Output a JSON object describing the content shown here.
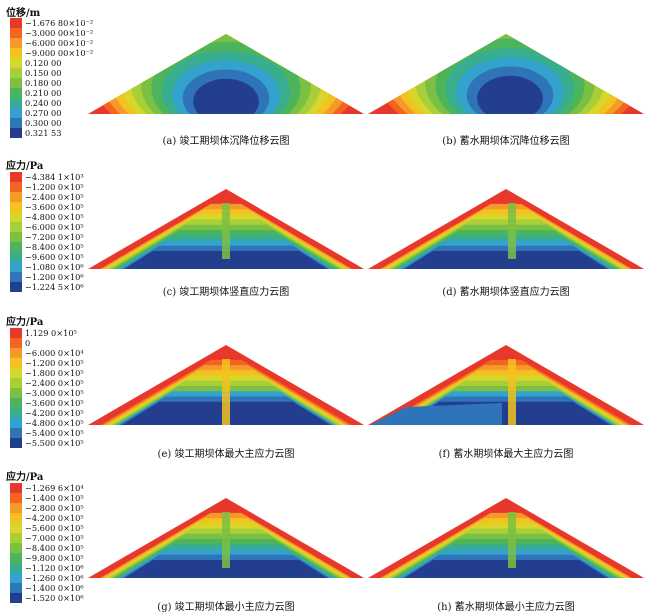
{
  "rows": [
    {
      "unit": "位移/m",
      "legend": [
        "−1.676 80×10⁻²",
        "−3.000 00×10⁻²",
        "−6.000 00×10⁻²",
        "−9.000 00×10⁻²",
        "0.120 00",
        "0.150 00",
        "0.180 00",
        "0.210 00",
        "0.240 00",
        "0.270 00",
        "0.300 00",
        "0.321 53"
      ],
      "captions": [
        "(a) 竣工期坝体沉降位移云图",
        "(b) 蓄水期坝体沉降位移云图"
      ]
    },
    {
      "unit": "应力/Pa",
      "legend": [
        "−4.384 1×10³",
        "−1.200 0×10⁵",
        "−2.400 0×10⁵",
        "−3.600 0×10⁵",
        "−4.800 0×10⁵",
        "−6.000 0×10⁵",
        "−7.200 0×10⁵",
        "−8.400 0×10⁵",
        "−9.600 0×10⁵",
        "−1.080 0×10⁶",
        "−1.200 0×10⁶",
        "−1.224 5×10⁶"
      ],
      "captions": [
        "(c) 竣工期坝体竖直应力云图",
        "(d) 蓄水期坝体竖直应力云图"
      ]
    },
    {
      "unit": "应力/Pa",
      "legend": [
        "1.129 0×10⁵",
        "0",
        "−6.000 0×10⁴",
        "−1.200 0×10⁵",
        "−1.800 0×10⁵",
        "−2.400 0×10⁵",
        "−3.000 0×10⁵",
        "−3.600 0×10⁵",
        "−4.200 0×10⁵",
        "−4.800 0×10⁵",
        "−5.400 0×10⁵",
        "−5.500 0×10⁵"
      ],
      "captions": [
        "(e) 竣工期坝体最大主应力云图",
        "(f) 蓄水期坝体最大主应力云图"
      ]
    },
    {
      "unit": "应力/Pa",
      "legend": [
        "−1.269 6×10⁴",
        "−1.400 0×10⁵",
        "−2.800 0×10⁵",
        "−4.200 0×10⁵",
        "−5.600 0×10⁵",
        "−7.000 0×10⁵",
        "−8.400 0×10⁵",
        "−9.800 0×10⁵",
        "−1.120 0×10⁶",
        "−1.260 0×10⁶",
        "−1.400 0×10⁶",
        "−1.520 0×10⁶"
      ],
      "captions": [
        "(g) 竣工期坝体最小主应力云图",
        "(h) 蓄水期坝体最小主应力云图"
      ]
    }
  ],
  "palette": [
    "#e8382b",
    "#f2641f",
    "#f4992a",
    "#f3c21f",
    "#d8d62a",
    "#a8cf3a",
    "#7cc043",
    "#4cb45a",
    "#39ad8f",
    "#33a2cc",
    "#2f74b8",
    "#243e8f"
  ]
}
